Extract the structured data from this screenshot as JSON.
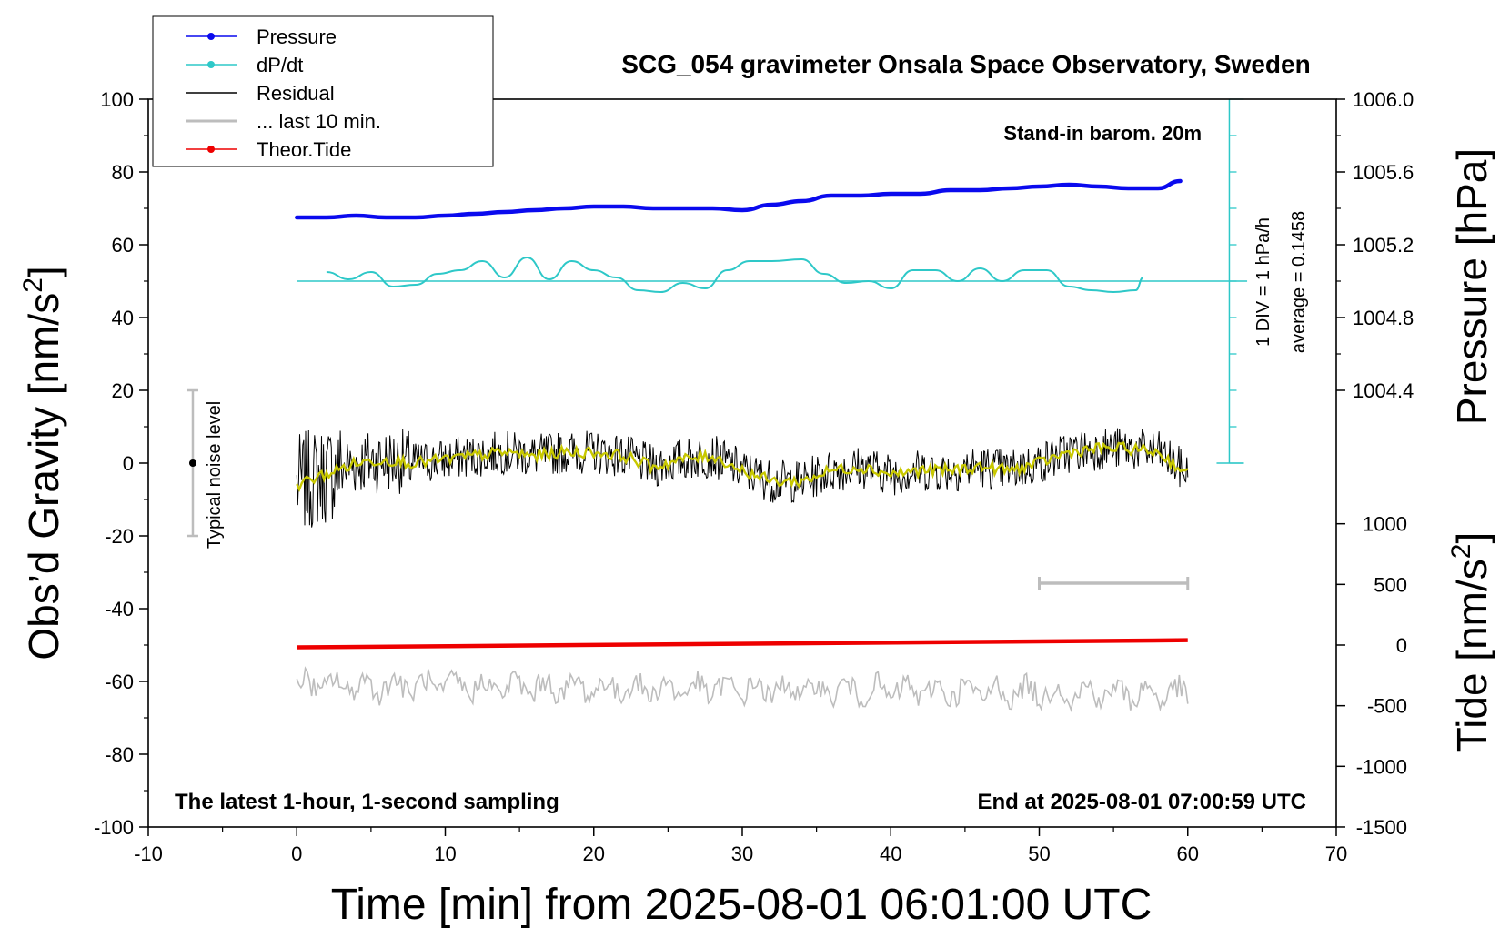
{
  "chart_data": {
    "type": "line",
    "title": "SCG_054 gravimeter Onsala Space Observatory, Sweden",
    "xlabel": "Time [min] from 2025-08-01 06:01:00 UTC",
    "ylabel_left": "Obs’d Gravity [nm/s",
    "ylabel_left_sup": "2",
    "ylabel_left_tail": "]",
    "ylabel_right_pressure": "Pressure [hPa]",
    "ylabel_right_tide": "Tide [nm/s",
    "ylabel_right_tide_sup": "2",
    "ylabel_right_tide_tail": "]",
    "xlim": [
      -10,
      70
    ],
    "ylim": [
      -100,
      100
    ],
    "x_ticks": [
      "-10",
      "0",
      "10",
      "20",
      "30",
      "40",
      "50",
      "60",
      "70"
    ],
    "x_tick_values": [
      -10,
      0,
      10,
      20,
      30,
      40,
      50,
      60,
      70
    ],
    "y_ticks": [
      "-100",
      "-80",
      "-60",
      "-40",
      "-20",
      "0",
      "20",
      "40",
      "60",
      "80",
      "100"
    ],
    "y_tick_values": [
      -100,
      -80,
      -60,
      -40,
      -20,
      0,
      20,
      40,
      60,
      80,
      100
    ],
    "pressure_axis": {
      "ticks": [
        "1004.4",
        "1004.8",
        "1005.2",
        "1005.6",
        "1006.0"
      ],
      "tick_values": [
        1004.4,
        1004.8,
        1005.2,
        1005.6,
        1006.0
      ],
      "gravity_equiv": [
        20,
        40,
        60,
        80,
        100
      ],
      "gravity_per_hpa": 50,
      "gravity_offset": -50200
    },
    "tide_axis": {
      "ticks": [
        "1000",
        "500",
        "0",
        "-500",
        "-1000",
        "-1500"
      ],
      "tick_values": [
        1000,
        500,
        0,
        -500,
        -1000,
        -1500
      ],
      "gravity_per_unit": 0.03,
      "gravity_offset": -55
    },
    "legend": {
      "position": "top-left",
      "entries": [
        {
          "label": "Pressure",
          "color": "#0a0aee",
          "marker": true
        },
        {
          "label": "dP/dt",
          "color": "#2ec8c8",
          "marker": true
        },
        {
          "label": "Residual",
          "color": "#000000",
          "marker": false
        },
        {
          "label": "... last 10 min.",
          "color": "#bdbdbd",
          "marker": false
        },
        {
          "label": "Theor.Tide",
          "color": "#ee0000",
          "marker": true
        }
      ]
    },
    "annotations": {
      "stand_in": "Stand-in barom. 20m",
      "div_scale": "1 DIV = 1 hPa/h",
      "average": "average = 0.1458",
      "noise_label": "Typical noise level",
      "bottom_left": "The latest 1-hour, 1-second sampling",
      "bottom_right": "End at 2025-08-01 07:00:59 UTC"
    },
    "series": [
      {
        "name": "Pressure",
        "units": "hPa",
        "color": "#0a0aee",
        "x": [
          0,
          2,
          4,
          6,
          8,
          10,
          12,
          14,
          16,
          18,
          20,
          22,
          24,
          26,
          28,
          30,
          32,
          34,
          36,
          38,
          40,
          42,
          44,
          46,
          48,
          50,
          52,
          54,
          56,
          58,
          59.5
        ],
        "values": [
          1005.35,
          1005.35,
          1005.36,
          1005.35,
          1005.35,
          1005.36,
          1005.37,
          1005.38,
          1005.39,
          1005.4,
          1005.41,
          1005.41,
          1005.4,
          1005.4,
          1005.4,
          1005.39,
          1005.42,
          1005.44,
          1005.47,
          1005.47,
          1005.48,
          1005.48,
          1005.5,
          1005.5,
          1005.51,
          1005.52,
          1005.53,
          1005.52,
          1005.51,
          1005.51,
          1005.55
        ]
      },
      {
        "name": "dP/dt",
        "units": "nm/s2 equivalent (1 DIV = 1 hPa/h)",
        "color": "#2ec8c8",
        "baseline": 50,
        "x": [
          2,
          3.5,
          5,
          6.5,
          8,
          9.5,
          11,
          12.5,
          14,
          15.5,
          17,
          18.5,
          20,
          21.5,
          23,
          24.5,
          26,
          27.5,
          29,
          30.5,
          32,
          34,
          35.5,
          37,
          38.5,
          40,
          41.5,
          43,
          44.5,
          46,
          47.5,
          49,
          50.5,
          52,
          53.5,
          55,
          56.5,
          57
        ],
        "values": [
          52.5,
          50.5,
          52.5,
          48.5,
          49,
          52,
          53,
          55.5,
          51,
          56.5,
          50.5,
          55.5,
          53,
          51,
          47.5,
          47,
          49.5,
          48,
          53,
          55.5,
          55.5,
          56,
          52,
          49.5,
          50,
          48,
          53,
          53,
          50,
          53.5,
          50,
          53,
          53,
          48.5,
          47.5,
          47,
          47.5,
          51
        ]
      },
      {
        "name": "Residual (smoothed)",
        "units": "nm/s2",
        "color": "#c8c800",
        "x": [
          0,
          2,
          4,
          6,
          8,
          10,
          12,
          14,
          16,
          18,
          20,
          22,
          24,
          26,
          28,
          30,
          32,
          34,
          36,
          38,
          40,
          42,
          44,
          46,
          48,
          50,
          52,
          54,
          56,
          58,
          60
        ],
        "values": [
          -6,
          -3,
          0,
          1,
          0,
          1,
          2,
          3,
          2,
          3,
          3,
          2,
          -1,
          1,
          2,
          -2,
          -5,
          -5,
          -2,
          -1,
          -3,
          -2,
          -2,
          -1,
          -2,
          0,
          3,
          4,
          4,
          3,
          -3
        ]
      },
      {
        "name": "Theor.Tide",
        "units": "nm/s2",
        "color": "#ee0000",
        "x": [
          0,
          60
        ],
        "values": [
          -19,
          40
        ]
      },
      {
        "name": "... last 10 min.",
        "units": "nm/s2",
        "color": "#bdbdbd",
        "x": [
          50,
          60
        ],
        "values": [
          -33,
          -33
        ]
      }
    ]
  }
}
